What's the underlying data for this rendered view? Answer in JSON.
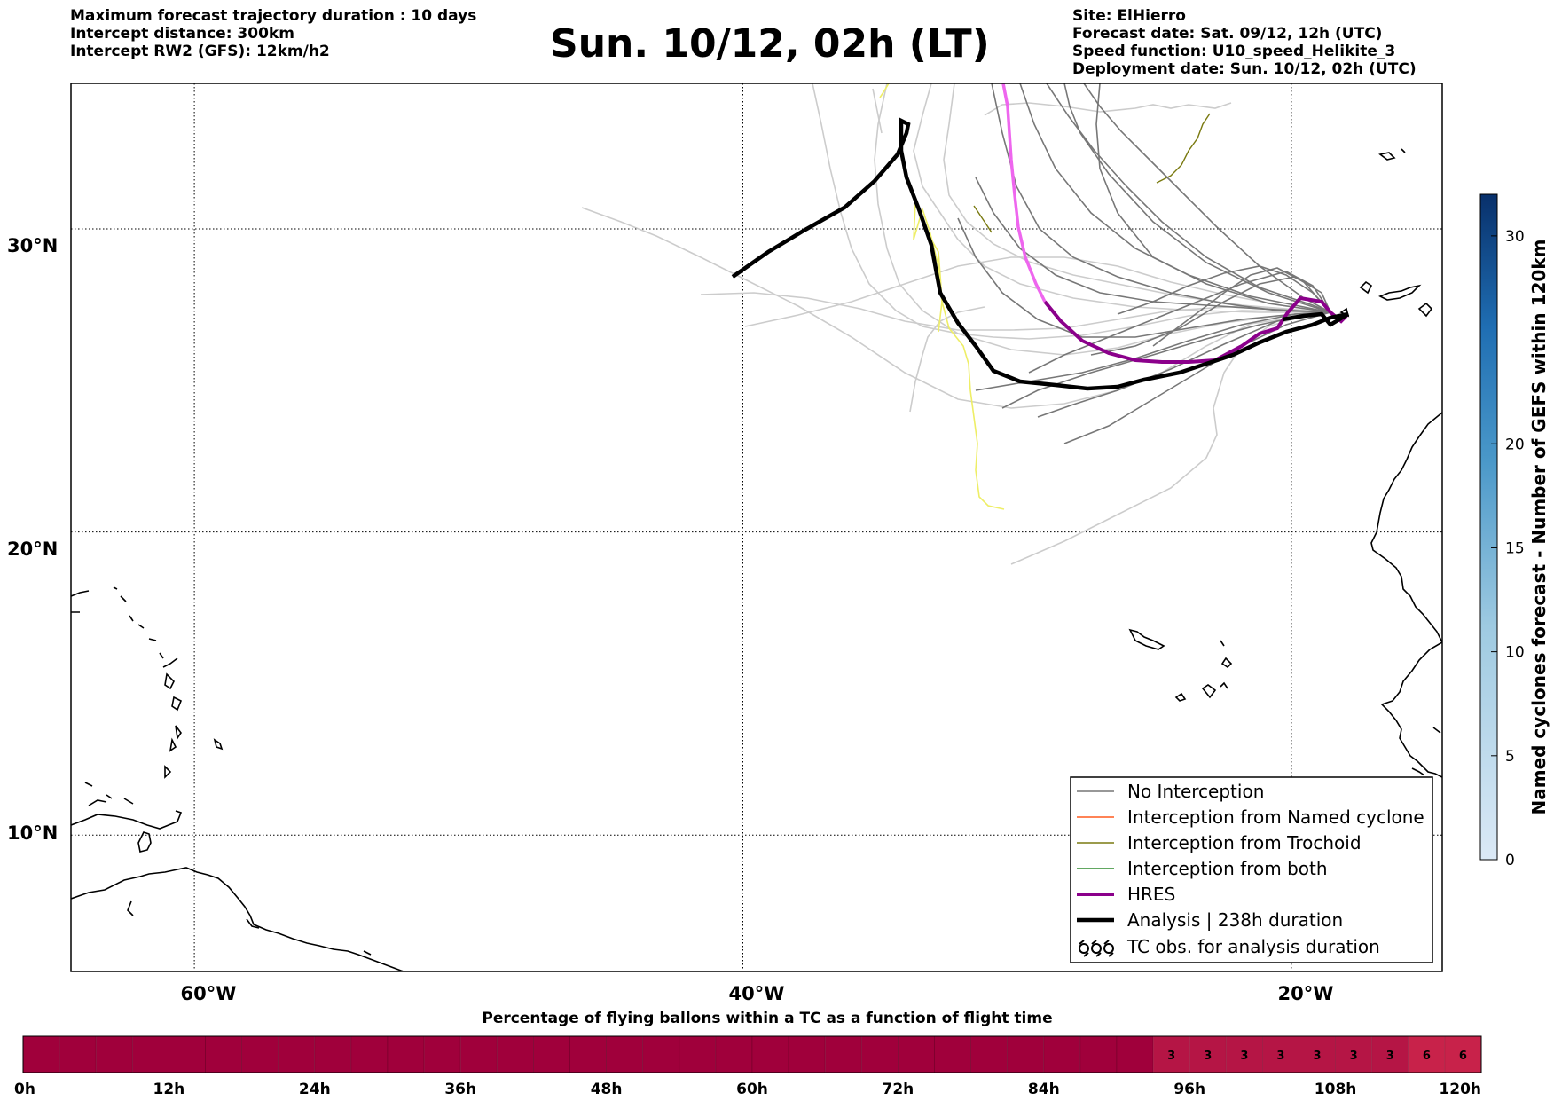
{
  "header_left": [
    "Maximum forecast trajectory duration : 10 days",
    "Intercept distance: 300km",
    "Intercept RW2 (GFS):  12km/h2"
  ],
  "header_right": [
    "Site: ElHierro",
    "Forecast date: Sat. 09/12, 12h (UTC)",
    "Speed function: U10_speed_Helikite_3",
    "Deployment date: Sun. 10/12, 02h (UTC)"
  ],
  "title": "Sun. 10/12, 02h (LT)",
  "map": {
    "lon_range": [
      -64.5,
      -14.5
    ],
    "lat_range": [
      5.5,
      34.8
    ],
    "lon_ticks": [
      "60°W",
      "40°W",
      "20°W"
    ],
    "lat_ticks": [
      "30°N",
      "20°N",
      "10°N"
    ],
    "lon_tick_values": [
      -60,
      -40,
      -20
    ],
    "lat_tick_values": [
      30,
      20,
      10
    ],
    "grid": true,
    "colors": {
      "no_interception": "#777777",
      "named_cyclone": "#ff5a1f",
      "trochoid": "#7a7a10",
      "both": "#2e8b2e",
      "hres": "#8b008b",
      "hres_early": "#ee66ee",
      "analysis": "#000000",
      "faint_traj": "#cccccc",
      "yellow_traj": "#eeee66"
    }
  },
  "legend": {
    "placement": "lower-right",
    "items": [
      {
        "label": "No Interception",
        "style": "thin-gray"
      },
      {
        "label": "Interception from Named cyclone",
        "style": "thin-orange"
      },
      {
        "label": "Interception from Trochoid",
        "style": "thin-olive"
      },
      {
        "label": "Interception from both",
        "style": "thin-green"
      },
      {
        "label": "HRES",
        "style": "thick-purple"
      },
      {
        "label": "Analysis | 238h duration",
        "style": "thick-black"
      },
      {
        "label": "TC obs. for analysis duration",
        "style": "tc-symbols"
      }
    ]
  },
  "colorbar": {
    "label": "Named cyclones forecast - Number of GEFS within 120km",
    "ticks": [
      "0",
      "5",
      "10",
      "15",
      "20",
      "30"
    ],
    "tick_values": [
      0,
      5,
      10,
      15,
      20,
      30
    ],
    "range": [
      0,
      32
    ],
    "color_low": "#dbe9f6",
    "color_high": "#08306b"
  },
  "bottom_bar": {
    "title": "Percentage of flying ballons within a TC as a function of flight time",
    "tick_labels": [
      "0h",
      "12h",
      "24h",
      "36h",
      "48h",
      "60h",
      "72h",
      "84h",
      "96h",
      "108h",
      "120h"
    ],
    "tick_values_h": [
      0,
      12,
      24,
      36,
      48,
      60,
      72,
      84,
      96,
      108,
      120
    ],
    "cell_hours": 3,
    "cell_values": [
      0,
      0,
      0,
      0,
      0,
      0,
      0,
      0,
      0,
      0,
      0,
      0,
      0,
      0,
      0,
      0,
      0,
      0,
      0,
      0,
      0,
      0,
      0,
      0,
      0,
      0,
      0,
      0,
      0,
      0,
      0,
      3,
      3,
      3,
      3,
      3,
      3,
      3,
      6,
      6
    ],
    "color_zero": "#a0003b",
    "color_low": "#b51545",
    "color_high": "#c8224a"
  }
}
